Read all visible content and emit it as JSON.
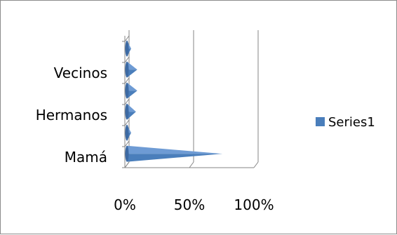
{
  "chart_data": {
    "type": "bar",
    "orientation": "horizontal",
    "style": "3d-cone",
    "categories": [
      "Mamá",
      "",
      "Hermanos",
      "",
      "Vecinos",
      ""
    ],
    "category_labels_shown": [
      "Mamá",
      "Hermanos",
      "Vecinos"
    ],
    "series": [
      {
        "name": "Series1",
        "values": [
          0.74,
          0.01,
          0.07,
          0.08,
          0.08,
          0.03
        ],
        "color": "#4a7ebb"
      }
    ],
    "x_ticks": [
      "0%",
      "50%",
      "100%"
    ],
    "xlim": [
      0,
      1
    ],
    "legend_position": "right",
    "grid": true
  }
}
